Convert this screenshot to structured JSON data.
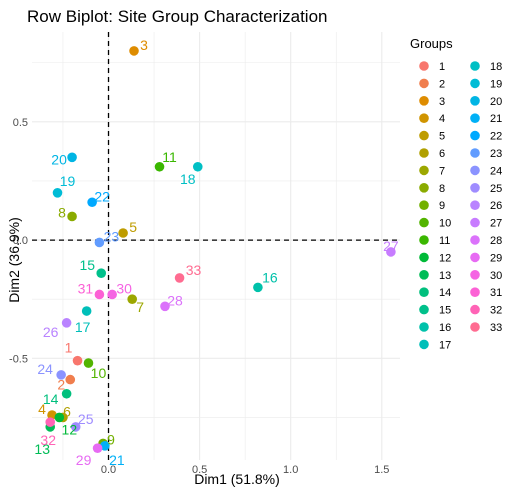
{
  "chart_data": {
    "type": "scatter",
    "title": "Row Biplot: Site Group Characterization",
    "xlabel": "Dim1 (51.8%)",
    "ylabel": "Dim2 (36.9%)",
    "xlim": [
      -0.42,
      1.6
    ],
    "ylim": [
      -0.93,
      0.88
    ],
    "x_ticks": [
      0.0,
      0.5,
      1.0,
      1.5
    ],
    "x_tick_labels": [
      "0.0",
      "0.5",
      "1.0",
      "1.5"
    ],
    "y_ticks": [
      -0.5,
      0.0,
      0.5
    ],
    "y_tick_labels": [
      "-0.5",
      "0.0",
      "0.5"
    ],
    "grid": true,
    "reference_lines": {
      "x": 0,
      "y": 0,
      "style": "dashed"
    },
    "legend": {
      "title": "Groups",
      "placement": "right",
      "columns": 2
    },
    "points": [
      {
        "label": "1",
        "x": -0.17,
        "y": -0.51,
        "color": "#F8766D"
      },
      {
        "label": "2",
        "x": -0.21,
        "y": -0.59,
        "color": "#F07E4E"
      },
      {
        "label": "3",
        "x": 0.14,
        "y": 0.8,
        "color": "#DE8C00"
      },
      {
        "label": "4",
        "x": -0.31,
        "y": -0.74,
        "color": "#D09400"
      },
      {
        "label": "5",
        "x": 0.08,
        "y": 0.03,
        "color": "#BE9C00"
      },
      {
        "label": "6",
        "x": -0.25,
        "y": -0.75,
        "color": "#B0A000"
      },
      {
        "label": "7",
        "x": 0.13,
        "y": -0.25,
        "color": "#9CA700"
      },
      {
        "label": "8",
        "x": -0.2,
        "y": 0.1,
        "color": "#8AAB00"
      },
      {
        "label": "9",
        "x": -0.03,
        "y": -0.86,
        "color": "#72B000"
      },
      {
        "label": "10",
        "x": -0.11,
        "y": -0.52,
        "color": "#53B400"
      },
      {
        "label": "11",
        "x": 0.28,
        "y": 0.31,
        "color": "#3AB700"
      },
      {
        "label": "12",
        "x": -0.27,
        "y": -0.75,
        "color": "#00BA38"
      },
      {
        "label": "13",
        "x": -0.32,
        "y": -0.79,
        "color": "#00BC56"
      },
      {
        "label": "14",
        "x": -0.23,
        "y": -0.65,
        "color": "#00BF7D"
      },
      {
        "label": "15",
        "x": -0.04,
        "y": -0.14,
        "color": "#00C08B"
      },
      {
        "label": "16",
        "x": 0.82,
        "y": -0.2,
        "color": "#00C1AA"
      },
      {
        "label": "17",
        "x": -0.12,
        "y": -0.3,
        "color": "#00BFB9"
      },
      {
        "label": "18",
        "x": 0.49,
        "y": 0.31,
        "color": "#00BFC4"
      },
      {
        "label": "19",
        "x": -0.28,
        "y": 0.2,
        "color": "#00BCD6"
      },
      {
        "label": "20",
        "x": -0.2,
        "y": 0.35,
        "color": "#00B5E4"
      },
      {
        "label": "21",
        "x": -0.02,
        "y": -0.87,
        "color": "#00B0F6"
      },
      {
        "label": "22",
        "x": -0.09,
        "y": 0.16,
        "color": "#00A9FF"
      },
      {
        "label": "23",
        "x": -0.05,
        "y": -0.01,
        "color": "#619CFF"
      },
      {
        "label": "24",
        "x": -0.26,
        "y": -0.57,
        "color": "#8B93FF"
      },
      {
        "label": "25",
        "x": -0.18,
        "y": -0.79,
        "color": "#9F8CFF"
      },
      {
        "label": "26",
        "x": -0.23,
        "y": -0.35,
        "color": "#B983FF"
      },
      {
        "label": "27",
        "x": 1.55,
        "y": -0.05,
        "color": "#C77CFF"
      },
      {
        "label": "28",
        "x": 0.31,
        "y": -0.28,
        "color": "#DB72FB"
      },
      {
        "label": "29",
        "x": -0.06,
        "y": -0.88,
        "color": "#E76BF3"
      },
      {
        "label": "30",
        "x": 0.02,
        "y": -0.23,
        "color": "#F564E3"
      },
      {
        "label": "31",
        "x": -0.05,
        "y": -0.23,
        "color": "#FC61D5"
      },
      {
        "label": "32",
        "x": -0.32,
        "y": -0.77,
        "color": "#FF63B6"
      },
      {
        "label": "33",
        "x": 0.39,
        "y": -0.16,
        "color": "#FF6C91"
      }
    ]
  }
}
